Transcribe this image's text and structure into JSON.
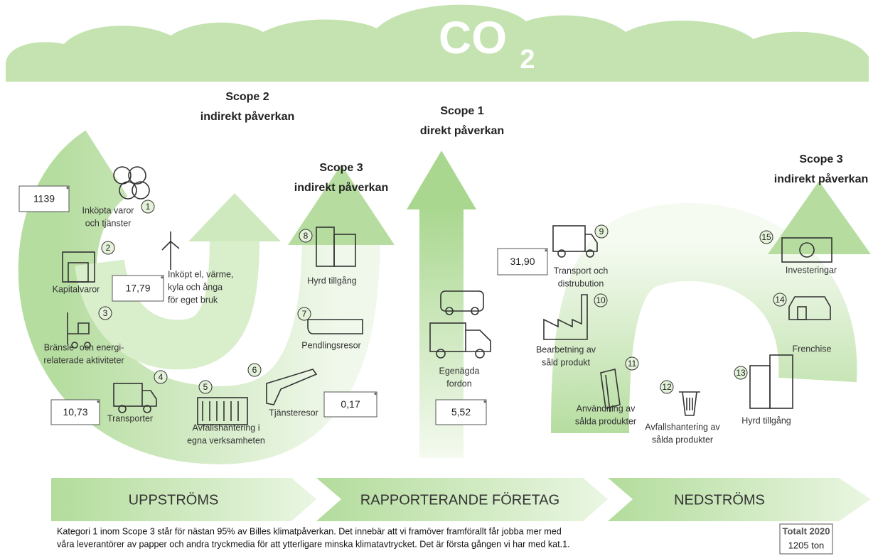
{
  "cloud": {
    "label": "CO",
    "subscript": "2"
  },
  "scopes": [
    {
      "title": "Scope 2",
      "subtitle": "indirekt påverkan"
    },
    {
      "title": "Scope 1",
      "subtitle": "direkt påverkan"
    },
    {
      "title": "Scope 3",
      "subtitle": "indirekt påverkan"
    },
    {
      "title": "Scope 3",
      "subtitle": "indirekt påverkan"
    }
  ],
  "asterisk": "*",
  "categories": [
    {
      "number": "1",
      "label": [
        "Inköpta varor",
        "och tjänster"
      ],
      "value": "1139"
    },
    {
      "number": "2",
      "label": [
        "Kapitalvaror"
      ]
    },
    {
      "number": "3",
      "label": [
        "Bränsle- och energi-",
        "relaterade aktiviteter"
      ]
    },
    {
      "number": "4",
      "label": [
        "Transporter"
      ],
      "value": "10,73"
    },
    {
      "number": "5",
      "label": [
        "Avfallshantering i",
        "egna verksamheten"
      ]
    },
    {
      "number": "6",
      "label": [
        "Tjänsteresor"
      ],
      "value": "0,17"
    },
    {
      "number": "7",
      "label": [
        "Pendlingsresor"
      ]
    },
    {
      "number": "8",
      "label": [
        "Hyrd tillgång"
      ]
    },
    {
      "number": "9",
      "label": [
        "Transport och",
        "distrubution"
      ],
      "value": "31,90"
    },
    {
      "number": "10",
      "label": [
        "Bearbetning av",
        "såld produkt"
      ]
    },
    {
      "number": "11",
      "label": [
        "Användning av",
        "sålda produkter"
      ]
    },
    {
      "number": "12",
      "label": [
        "Avfallshantering av",
        "sålda produkter"
      ]
    },
    {
      "number": "13",
      "label": [
        "Hyrd tillgång"
      ]
    },
    {
      "number": "14",
      "label": [
        "Frenchise"
      ]
    },
    {
      "number": "15",
      "label": [
        "Investeringar"
      ]
    }
  ],
  "own": [
    {
      "label": [
        "Inköpt el, värme,",
        "kyla och ånga",
        "för eget bruk"
      ],
      "value": "17,79"
    },
    {
      "label": [
        "Egenägda",
        "fordon"
      ],
      "value": "5,52"
    }
  ],
  "flow": [
    "UPPSTRÖMS",
    "RAPPORTERANDE FÖRETAG",
    "NEDSTRÖMS"
  ],
  "footnote": [
    "Kategori 1 inom Scope 3 står för nästan 95% av Billes klimatpåverkan. Det innebär att vi framöver framförallt får jobba mer med",
    "våra leverantörer av papper och andra tryckmedia för att ytterligare minska klimatavtrycket. Det är första gången vi har med kat.1."
  ],
  "total": {
    "title": "Totalt 2020",
    "value": "1205 ton"
  }
}
